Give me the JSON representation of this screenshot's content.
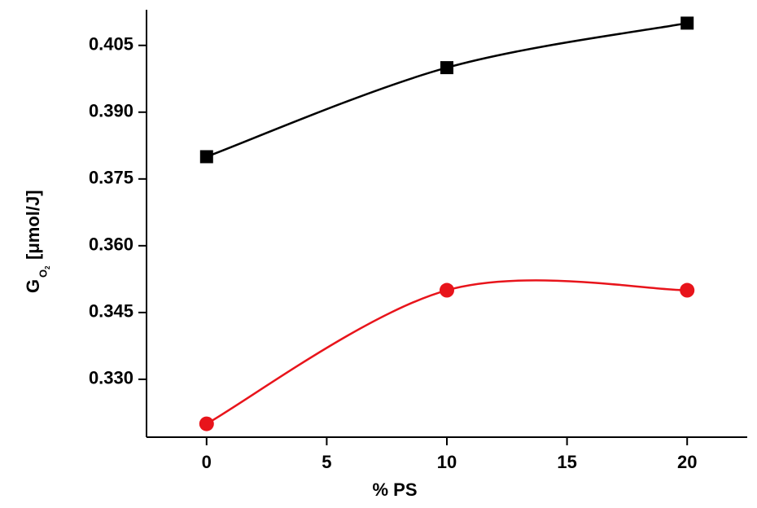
{
  "chart_data": {
    "type": "line",
    "x": [
      0,
      10,
      20
    ],
    "series": [
      {
        "color": "#000000",
        "marker": "square",
        "values": [
          0.38,
          0.4,
          0.41
        ]
      },
      {
        "color": "#e8141b",
        "marker": "circle",
        "values": [
          0.32,
          0.35,
          0.35
        ]
      }
    ],
    "xlabel": "% PS",
    "ylabel": {
      "symbol": "G",
      "subscript": "O",
      "subsubscript": "2",
      "unit": "[μmol/J]"
    },
    "xlim": [
      -2.5,
      22.5
    ],
    "xticks": [
      0,
      5,
      10,
      15,
      20
    ],
    "ylim": [
      0.317,
      0.413
    ],
    "yticks": [
      {
        "value": 0.33,
        "label": "0.330"
      },
      0.345,
      {
        "value": 0.36,
        "label": "0.360"
      },
      0.375,
      {
        "value": 0.39,
        "label": "0.390"
      },
      0.405
    ],
    "smooth": true
  }
}
